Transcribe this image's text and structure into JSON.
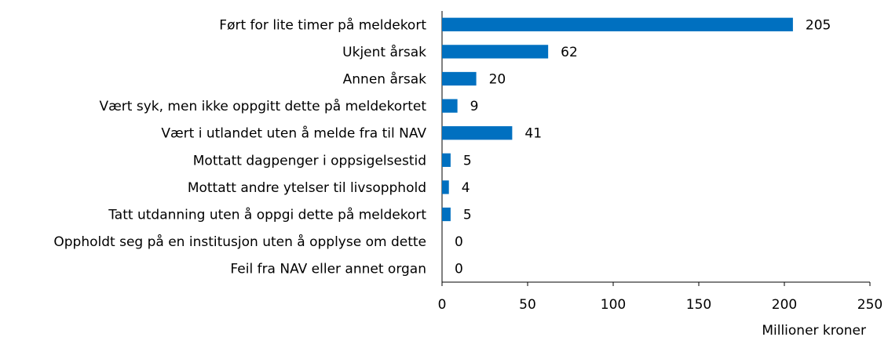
{
  "chart_data": {
    "type": "bar",
    "orientation": "horizontal",
    "categories": [
      "Ført for lite timer på meldekort",
      "Ukjent årsak",
      "Annen årsak",
      "Vært syk, men ikke oppgitt dette på meldekortet",
      "Vært i utlandet uten å melde fra til NAV",
      "Mottatt dagpenger i oppsigelsestid",
      "Mottatt andre ytelser til livsopphold",
      "Tatt utdanning uten å oppgi dette på meldekort",
      "Oppholdt seg på en institusjon uten å opplyse om dette",
      "Feil fra NAV eller annet organ"
    ],
    "values": [
      205,
      62,
      20,
      9,
      41,
      5,
      4,
      5,
      0,
      0
    ],
    "color": "#0070c0",
    "xlabel": "Millioner kroner",
    "xlim": [
      0,
      250
    ],
    "xticks": [
      0,
      50,
      100,
      150,
      200,
      250
    ],
    "grid": false
  }
}
